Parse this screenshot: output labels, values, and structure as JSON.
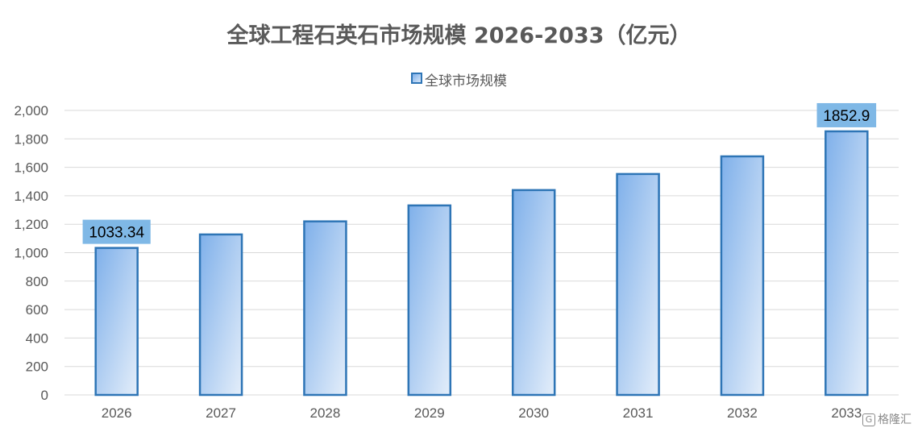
{
  "chart_data": {
    "type": "bar",
    "title": "全球工程石英石市场规模 2026-2033（亿元）",
    "categories": [
      "2026",
      "2027",
      "2028",
      "2029",
      "2030",
      "2031",
      "2032",
      "2033"
    ],
    "series": [
      {
        "name": "全球市场规模",
        "values": [
          1033.34,
          1128,
          1220,
          1332,
          1440,
          1553,
          1677,
          1852.9
        ]
      }
    ],
    "data_labels": [
      {
        "index": 0,
        "text": "1033.34"
      },
      {
        "index": 7,
        "text": "1852.9"
      }
    ],
    "yticks": [
      "0",
      "200",
      "400",
      "600",
      "800",
      "1,000",
      "1,200",
      "1,400",
      "1,600",
      "1,800",
      "2,000"
    ],
    "ylim": [
      0,
      2000
    ],
    "grid": true,
    "legend_position": "top-center",
    "colors": {
      "bar_border": "#2e75b6",
      "bar_fill_top": "#7fb0ea",
      "bar_fill_bottom": "#e4eefa",
      "label_box": "#7fb8e6",
      "grid": "#d9d9d9"
    }
  },
  "watermark": {
    "text": "格隆汇",
    "icon": "g-logo-icon"
  }
}
